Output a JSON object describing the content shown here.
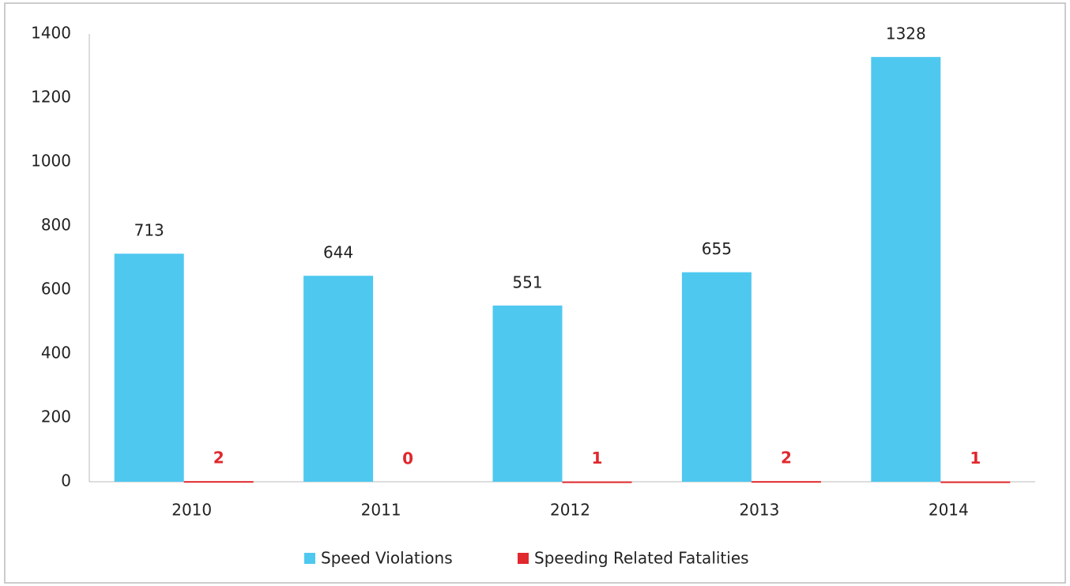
{
  "chart_data": {
    "type": "bar",
    "categories": [
      "2010",
      "2011",
      "2012",
      "2013",
      "2014"
    ],
    "series": [
      {
        "name": "Speed Violations",
        "color": "#4fc8f0",
        "values": [
          713,
          644,
          551,
          655,
          1328
        ],
        "label_color": "#222222"
      },
      {
        "name": "Speeding Related Fatalities",
        "color": "#e0282d",
        "values": [
          2,
          0,
          1,
          2,
          1
        ],
        "label_color": "#e0282d"
      }
    ],
    "ylim": [
      0,
      1400
    ],
    "yticks": [
      0,
      200,
      400,
      600,
      800,
      1000,
      1200,
      1400
    ],
    "grid": false,
    "legend": "bottom"
  }
}
